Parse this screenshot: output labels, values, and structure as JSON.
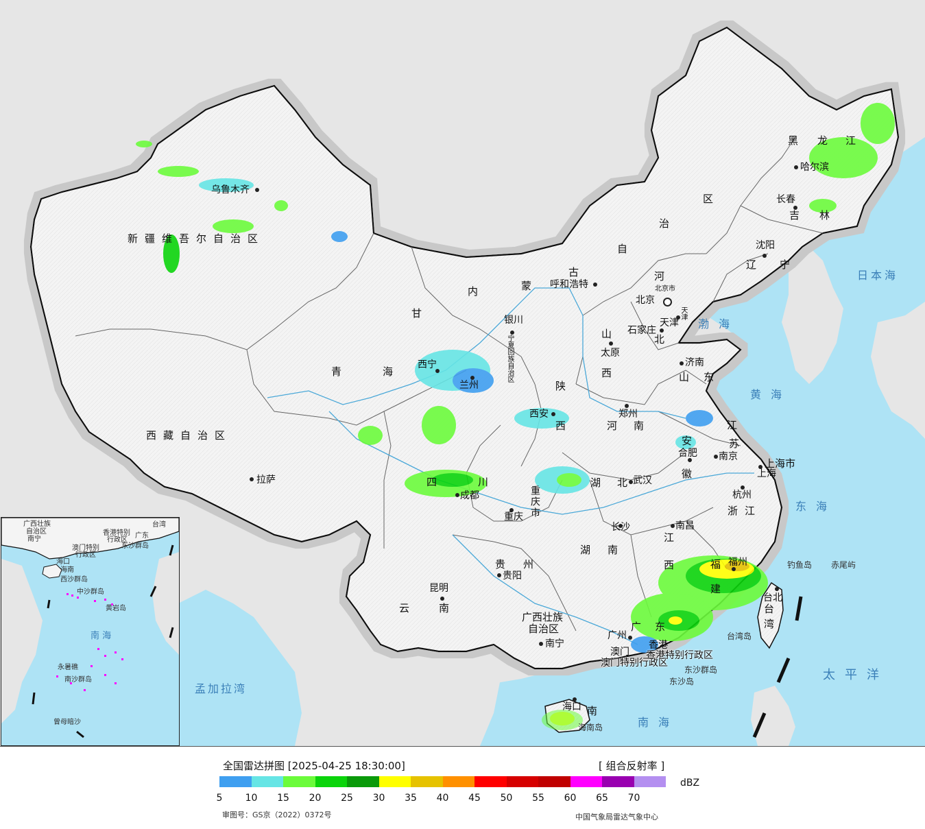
{
  "title": "全国雷达拼图",
  "timestamp": "[2025-04-25 18:30:00]",
  "product": "[ 组合反射率 ]",
  "unit": "dBZ",
  "legend": {
    "colors": [
      "#3f9ff0",
      "#66e5e5",
      "#6bfb3b",
      "#0bd40b",
      "#0a9a0a",
      "#ffff00",
      "#e6c200",
      "#ff9000",
      "#ff0000",
      "#d60000",
      "#c00000",
      "#ff00ff",
      "#9900b0",
      "#b48ff0"
    ],
    "ticks": [
      "5",
      "10",
      "15",
      "20",
      "25",
      "30",
      "35",
      "40",
      "45",
      "50",
      "55",
      "60",
      "65",
      "70"
    ]
  },
  "footer": {
    "approval": "审图号：GS京（2022）0372号",
    "source": "中国气象局雷达气象中心"
  },
  "provinces": {
    "xinjiang": "新疆维吾尔自治区",
    "xizang": "西藏自治区",
    "qinghai_1": "青",
    "qinghai_2": "海",
    "gansu": "甘",
    "sichuan_1": "四",
    "sichuan_2": "川",
    "yunnan_1": "云",
    "yunnan_2": "南",
    "guizhou_1": "贵",
    "guizhou_2": "州",
    "guangxi_1": "广西壮族",
    "guangxi_2": "自治区",
    "guangdong_1": "广",
    "guangdong_2": "东",
    "hainan": "南",
    "hunan_1": "湖",
    "hunan_2": "南",
    "hubei_1": "湖",
    "hubei_2": "北",
    "jiangxi_1": "江",
    "jiangxi_2": "西",
    "fujian_1": "福",
    "fujian_2": "建",
    "zhejiang_1": "浙",
    "zhejiang_2": "江",
    "anhui_1": "安",
    "anhui_2": "徽",
    "jiangsu_1": "江",
    "jiangsu_2": "苏",
    "shandong_1": "山",
    "shandong_2": "东",
    "henan_1": "河",
    "henan_2": "南",
    "shanxi_1": "山",
    "shanxi_2": "西",
    "shaanxi_1": "陕",
    "shaanxi_2": "西",
    "hebei_1": "河",
    "hebei_2": "北",
    "neimeng_1": "内",
    "neimeng_2": "蒙",
    "neimeng_3": "古",
    "neimeng_4": "自",
    "neimeng_5": "治",
    "neimeng_6": "区",
    "liaoning_1": "辽",
    "liaoning_2": "宁",
    "jilin_1": "吉",
    "jilin_2": "林",
    "heilongjiang_1": "黑",
    "heilongjiang_2": "龙",
    "heilongjiang_3": "江",
    "taiwan_1": "台",
    "taiwan_2": "湾",
    "chongqing": "重庆市",
    "shanghai": "上海市",
    "ningxia": "宁夏回族自治区",
    "tianjin": "天津",
    "beijing_city": "北京市",
    "hk": "香港特别行政区",
    "macau": "澳门特别行政区"
  },
  "cities": {
    "urumqi": "乌鲁木齐",
    "lhasa": "拉萨",
    "xining": "西宁",
    "lanzhou": "兰州",
    "yinchuan": "银川",
    "huhehaote": "呼和浩特",
    "beijing": "北京",
    "tianjin": "天津",
    "shijiazhuang": "石家庄",
    "taiyuan": "太原",
    "jinan": "济南",
    "zhengzhou": "郑州",
    "xian": "西安",
    "chengdu": "成都",
    "chongqing": "重庆",
    "wuhan": "武汉",
    "hefei": "合肥",
    "nanjing": "南京",
    "shanghai": "上海",
    "hangzhou": "杭州",
    "nanchang": "南昌",
    "changsha": "长沙",
    "guiyang": "贵阳",
    "kunming": "昆明",
    "nanning": "南宁",
    "guangzhou": "广州",
    "fuzhou": "福州",
    "taibei": "台北",
    "haikou": "海口",
    "shenyang": "沈阳",
    "changchun": "长春",
    "haerbin": "哈尔滨",
    "hongkong": "香港",
    "macau_city": "澳门"
  },
  "seas": {
    "bohai": "渤海",
    "huanghai": "黄海",
    "donghai": "东海",
    "nanhai": "南海",
    "ribenhai": "日本海",
    "taipingyang": "太平洋",
    "mengjiala": "孟加拉湾"
  },
  "islands": {
    "diaoyu": "钓鱼岛",
    "chiwei": "赤尾屿",
    "taiwan_island": "台湾岛",
    "dongsha_qundao": "东沙群岛",
    "dongsha_dao": "东沙岛",
    "hainan_dao": "海南岛"
  },
  "inset": {
    "labels": {
      "guangxi": "广西壮族",
      "zizhiqu": "自治区",
      "nanning": "南宁",
      "hk": "香港特别",
      "xingzheng": "行政区",
      "macau": "澳门特别",
      "macau2": "行政区",
      "dongsha": "东沙群岛",
      "haikou": "海口",
      "hainan": "海南",
      "xisha": "西沙群岛",
      "zhongsha": "中沙群岛",
      "huangyan": "黄岩岛",
      "nansha": "南沙群岛",
      "zengmu": "曾母暗沙",
      "nanhai": "南  海",
      "yongshu": "永暑礁",
      "taiwan": "台湾",
      "guangdong": "广东"
    }
  }
}
